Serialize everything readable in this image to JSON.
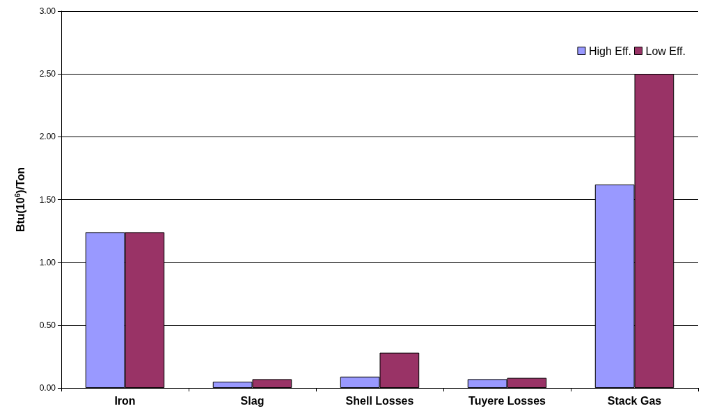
{
  "chart_data": {
    "type": "bar",
    "ylabel": "Btu(10$^{6}$)/Ton",
    "categories": [
      "Iron",
      "Slag",
      "Shell Losses",
      "Tuyere Losses",
      "Stack Gas"
    ],
    "series": [
      {
        "name": "High Eff.",
        "color": "#9999ff",
        "values": [
          1.24,
          0.05,
          0.09,
          0.07,
          1.62
        ]
      },
      {
        "name": "Low Eff.",
        "color": "#993366",
        "values": [
          1.24,
          0.07,
          0.28,
          0.08,
          2.5
        ]
      }
    ],
    "ylim": [
      0,
      3
    ],
    "yticks": [
      {
        "value": 0,
        "label": "0.00"
      },
      {
        "value": 0.5,
        "label": "0.50"
      },
      {
        "value": 1,
        "label": "1.00"
      },
      {
        "value": 1.5,
        "label": "1.50"
      },
      {
        "value": 2,
        "label": "2.00"
      },
      {
        "value": 2.5,
        "label": "2.50"
      },
      {
        "value": 3,
        "label": "3.00"
      }
    ],
    "grid": "y",
    "legend": "top right"
  }
}
